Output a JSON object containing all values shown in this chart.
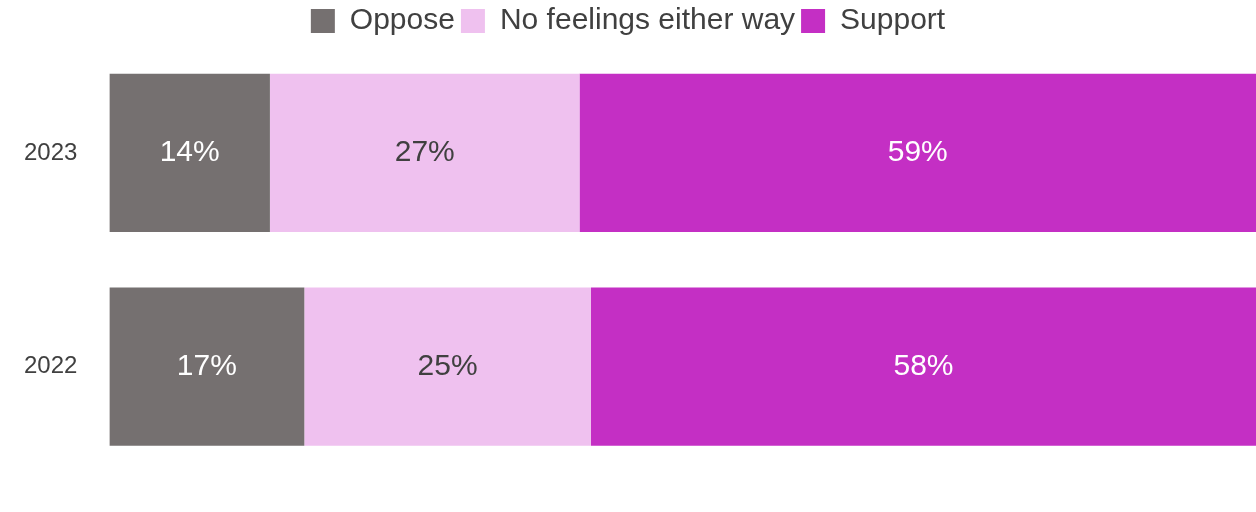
{
  "chart_data": {
    "type": "bar",
    "orientation": "horizontal",
    "stacked": true,
    "categories": [
      "2023",
      "2022"
    ],
    "series": [
      {
        "name": "Oppose",
        "color": "#757070",
        "values": [
          14,
          17
        ],
        "value_labels": [
          "14%",
          "17%"
        ]
      },
      {
        "name": "No feelings either way",
        "color": "#efc1ef",
        "values": [
          27,
          25
        ],
        "value_labels": [
          "27%",
          "25%"
        ]
      },
      {
        "name": "Support",
        "color": "#c42fc4",
        "values": [
          59,
          58
        ],
        "value_labels": [
          "59%",
          "58%"
        ]
      }
    ],
    "tick_labels": "y",
    "legend": "top"
  }
}
